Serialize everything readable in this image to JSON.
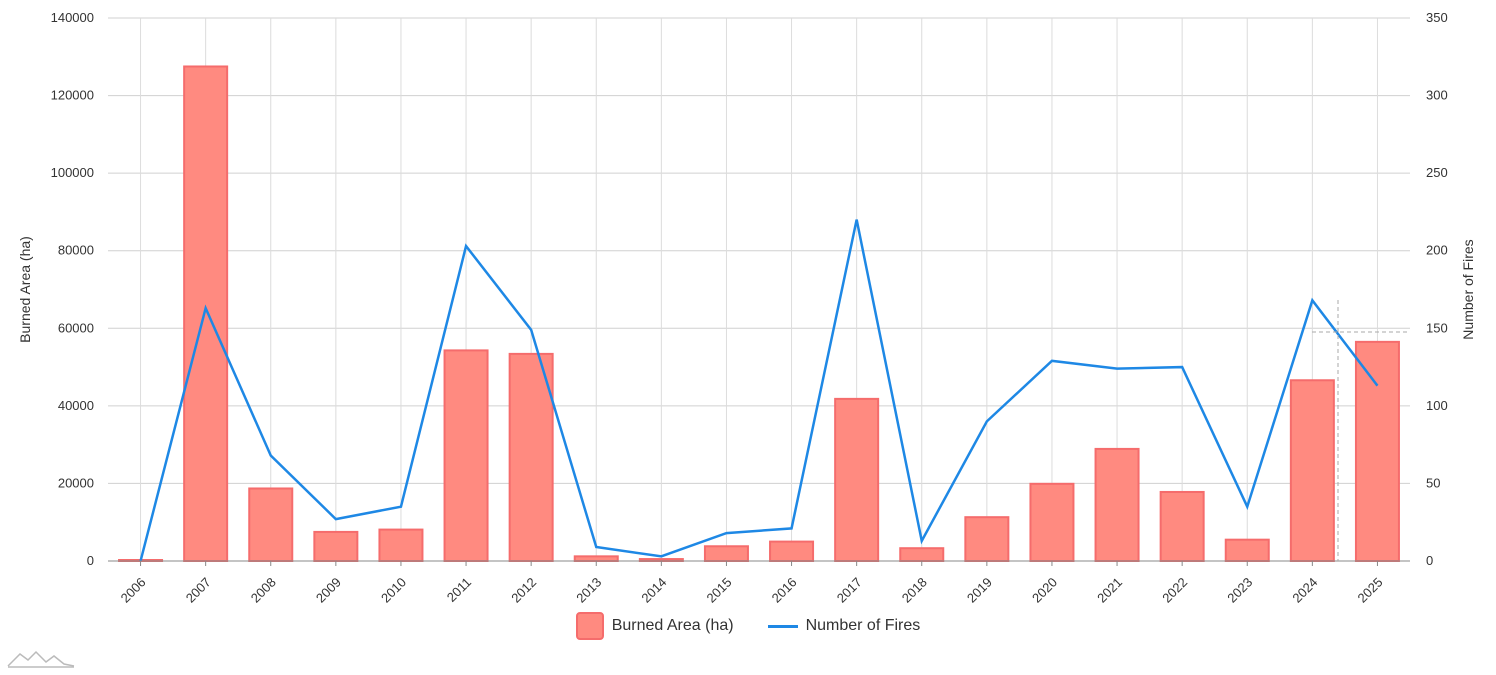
{
  "chart_data": {
    "type": "bar+line",
    "categories": [
      "2006",
      "2007",
      "2008",
      "2009",
      "2010",
      "2011",
      "2012",
      "2013",
      "2014",
      "2015",
      "2016",
      "2017",
      "2018",
      "2019",
      "2020",
      "2021",
      "2022",
      "2023",
      "2024",
      "2025"
    ],
    "series": [
      {
        "name": "Burned Area (ha)",
        "type": "bar",
        "axis": "left",
        "color": "#ff8a80",
        "border": "#f56c6c",
        "values": [
          100,
          127500,
          18700,
          7500,
          8100,
          54300,
          53400,
          1200,
          500,
          3800,
          5000,
          41800,
          3300,
          11300,
          19900,
          28900,
          17800,
          5500,
          46600,
          56500
        ]
      },
      {
        "name": "Number of Fires",
        "type": "line",
        "axis": "right",
        "color": "#1e88e5",
        "values": [
          0,
          163,
          68,
          27,
          35,
          203,
          149,
          9,
          3,
          18,
          21,
          220,
          13,
          90,
          129,
          124,
          125,
          35,
          168,
          113
        ]
      }
    ],
    "y_left": {
      "label": "Burned Area (ha)",
      "min": 0,
      "max": 140000,
      "ticks": [
        0,
        20000,
        40000,
        60000,
        80000,
        100000,
        120000,
        140000
      ]
    },
    "y_right": {
      "label": "Number of Fires",
      "min": 0,
      "max": 350,
      "ticks": [
        0,
        50,
        100,
        150,
        200,
        250,
        300,
        350
      ]
    },
    "grid": true,
    "legend_position": "bottom-center"
  },
  "legend": {
    "bar_label": "Burned Area (ha)",
    "line_label": "Number of Fires"
  }
}
